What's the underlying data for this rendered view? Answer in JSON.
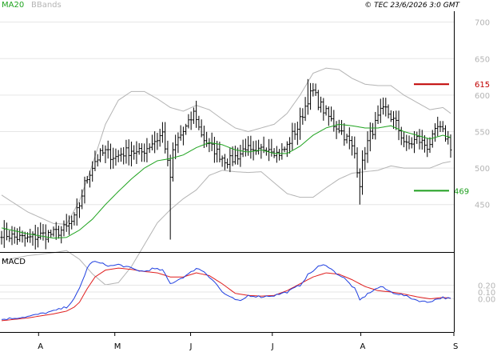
{
  "header": {
    "ma_label": "MA20",
    "bbands_label": "BBands",
    "credit": "© TEC 23/6/2026 3:0 GMT"
  },
  "macd_label": "MACD",
  "colors": {
    "price_bars": "#000000",
    "ma20": "#1fa31f",
    "bbands": "#b4b4b4",
    "grid": "#e6e6e6",
    "resistance": "#c00000",
    "support": "#1f9f1f",
    "macd": "#1f3fe0",
    "signal": "#e01f1f",
    "axis_text": "#b4b4b4",
    "legend_ma": "#1fa31f",
    "legend_bb": "#b4b4b4"
  },
  "levels": {
    "resistance": {
      "value": 615,
      "label": "615"
    },
    "support": {
      "value": 469,
      "label": "469"
    }
  },
  "chart_data": [
    {
      "type": "ohlc",
      "ylim": [
        385,
        715
      ],
      "yticks": [
        {
          "value": 700,
          "label": "700"
        },
        {
          "value": 650,
          "label": "650"
        },
        {
          "value": 600,
          "label": "600"
        },
        {
          "value": 550,
          "label": "550"
        },
        {
          "value": 500,
          "label": "500"
        },
        {
          "value": 450,
          "label": "450"
        }
      ],
      "xticks": [
        "A",
        "M",
        "J",
        "J",
        "A",
        "S"
      ],
      "grid": true,
      "series": [
        {
          "key": "ma20",
          "name": "MA20"
        },
        {
          "key": "bbands",
          "name": "BBands"
        }
      ],
      "price_anchors": [
        [
          0,
          412
        ],
        [
          5,
          405
        ],
        [
          10,
          403
        ],
        [
          15,
          408
        ],
        [
          20,
          410
        ],
        [
          25,
          418
        ],
        [
          28,
          430
        ],
        [
          30,
          450
        ],
        [
          32,
          478
        ],
        [
          34,
          495
        ],
        [
          36,
          510
        ],
        [
          38,
          518
        ],
        [
          40,
          522
        ],
        [
          42,
          518
        ],
        [
          44,
          515
        ],
        [
          46,
          520
        ],
        [
          48,
          522
        ],
        [
          50,
          525
        ],
        [
          52,
          520
        ],
        [
          54,
          522
        ],
        [
          56,
          528
        ],
        [
          58,
          535
        ],
        [
          60,
          540
        ],
        [
          62,
          548
        ],
        [
          63,
          530
        ],
        [
          64,
          505
        ],
        [
          65,
          488
        ],
        [
          66,
          520
        ],
        [
          68,
          540
        ],
        [
          70,
          550
        ],
        [
          72,
          560
        ],
        [
          74,
          575
        ],
        [
          75,
          570
        ],
        [
          76,
          555
        ],
        [
          78,
          540
        ],
        [
          80,
          530
        ],
        [
          82,
          525
        ],
        [
          84,
          518
        ],
        [
          86,
          512
        ],
        [
          88,
          510
        ],
        [
          90,
          515
        ],
        [
          92,
          520
        ],
        [
          94,
          530
        ],
        [
          96,
          520
        ],
        [
          98,
          518
        ],
        [
          100,
          525
        ],
        [
          102,
          530
        ],
        [
          104,
          528
        ],
        [
          106,
          520
        ],
        [
          108,
          522
        ],
        [
          110,
          530
        ],
        [
          112,
          545
        ],
        [
          114,
          555
        ],
        [
          116,
          575
        ],
        [
          118,
          595
        ],
        [
          120,
          605
        ],
        [
          122,
          590
        ],
        [
          124,
          580
        ],
        [
          126,
          570
        ],
        [
          128,
          560
        ],
        [
          130,
          555
        ],
        [
          132,
          545
        ],
        [
          134,
          535
        ],
        [
          136,
          520
        ],
        [
          137,
          500
        ],
        [
          138,
          480
        ],
        [
          139,
          505
        ],
        [
          140,
          525
        ],
        [
          142,
          545
        ],
        [
          144,
          560
        ],
        [
          146,
          575
        ],
        [
          148,
          580
        ],
        [
          150,
          570
        ],
        [
          152,
          560
        ],
        [
          154,
          545
        ],
        [
          156,
          530
        ],
        [
          158,
          535
        ],
        [
          160,
          540
        ],
        [
          162,
          535
        ],
        [
          164,
          530
        ],
        [
          166,
          540
        ],
        [
          168,
          555
        ],
        [
          170,
          548
        ],
        [
          172,
          540
        ],
        [
          173,
          530
        ]
      ],
      "ma20_anchors": [
        [
          0,
          418
        ],
        [
          10,
          410
        ],
        [
          20,
          404
        ],
        [
          25,
          405
        ],
        [
          30,
          415
        ],
        [
          35,
          430
        ],
        [
          40,
          450
        ],
        [
          45,
          468
        ],
        [
          50,
          485
        ],
        [
          55,
          500
        ],
        [
          60,
          510
        ],
        [
          65,
          513
        ],
        [
          70,
          518
        ],
        [
          75,
          528
        ],
        [
          80,
          535
        ],
        [
          85,
          532
        ],
        [
          90,
          525
        ],
        [
          95,
          522
        ],
        [
          100,
          525
        ],
        [
          105,
          520
        ],
        [
          110,
          520
        ],
        [
          115,
          530
        ],
        [
          120,
          545
        ],
        [
          125,
          555
        ],
        [
          130,
          560
        ],
        [
          135,
          558
        ],
        [
          140,
          555
        ],
        [
          145,
          555
        ],
        [
          150,
          558
        ],
        [
          155,
          550
        ],
        [
          160,
          545
        ],
        [
          165,
          540
        ],
        [
          170,
          545
        ],
        [
          173,
          542
        ]
      ],
      "bb_width_anchors": [
        [
          0,
          45
        ],
        [
          10,
          30
        ],
        [
          20,
          20
        ],
        [
          25,
          18
        ],
        [
          30,
          40
        ],
        [
          35,
          75
        ],
        [
          40,
          110
        ],
        [
          45,
          125
        ],
        [
          50,
          120
        ],
        [
          55,
          105
        ],
        [
          60,
          85
        ],
        [
          65,
          70
        ],
        [
          70,
          60
        ],
        [
          75,
          58
        ],
        [
          80,
          45
        ],
        [
          85,
          35
        ],
        [
          90,
          30
        ],
        [
          95,
          28
        ],
        [
          100,
          30
        ],
        [
          105,
          40
        ],
        [
          110,
          55
        ],
        [
          115,
          70
        ],
        [
          120,
          85
        ],
        [
          125,
          82
        ],
        [
          130,
          75
        ],
        [
          135,
          65
        ],
        [
          140,
          60
        ],
        [
          145,
          58
        ],
        [
          150,
          55
        ],
        [
          155,
          50
        ],
        [
          160,
          45
        ],
        [
          165,
          40
        ],
        [
          170,
          38
        ],
        [
          173,
          33
        ]
      ]
    },
    {
      "type": "line",
      "title": "MACD",
      "ylim": [
        -45,
        65
      ],
      "yticks": [
        {
          "value": 20,
          "label": "0.20"
        },
        {
          "value": 10,
          "label": "0.10"
        },
        {
          "value": 0,
          "label": "0.00"
        }
      ],
      "macd_anchors": [
        [
          0,
          -30
        ],
        [
          5,
          -28
        ],
        [
          10,
          -26
        ],
        [
          15,
          -22
        ],
        [
          20,
          -18
        ],
        [
          25,
          -12
        ],
        [
          28,
          0
        ],
        [
          30,
          15
        ],
        [
          33,
          45
        ],
        [
          35,
          55
        ],
        [
          38,
          52
        ],
        [
          42,
          48
        ],
        [
          45,
          50
        ],
        [
          48,
          47
        ],
        [
          52,
          42
        ],
        [
          55,
          40
        ],
        [
          58,
          44
        ],
        [
          62,
          42
        ],
        [
          65,
          22
        ],
        [
          68,
          28
        ],
        [
          72,
          36
        ],
        [
          75,
          45
        ],
        [
          78,
          40
        ],
        [
          82,
          25
        ],
        [
          85,
          10
        ],
        [
          88,
          2
        ],
        [
          92,
          -4
        ],
        [
          95,
          5
        ],
        [
          100,
          3
        ],
        [
          105,
          5
        ],
        [
          110,
          10
        ],
        [
          115,
          20
        ],
        [
          118,
          35
        ],
        [
          122,
          47
        ],
        [
          125,
          50
        ],
        [
          128,
          40
        ],
        [
          132,
          30
        ],
        [
          136,
          15
        ],
        [
          138,
          -2
        ],
        [
          142,
          10
        ],
        [
          146,
          18
        ],
        [
          150,
          10
        ],
        [
          155,
          5
        ],
        [
          160,
          -2
        ],
        [
          164,
          -5
        ],
        [
          168,
          0
        ],
        [
          170,
          2
        ],
        [
          173,
          0
        ]
      ],
      "signal_anchors": [
        [
          0,
          -32
        ],
        [
          5,
          -30
        ],
        [
          10,
          -28
        ],
        [
          15,
          -25
        ],
        [
          20,
          -22
        ],
        [
          25,
          -18
        ],
        [
          28,
          -12
        ],
        [
          30,
          -5
        ],
        [
          33,
          15
        ],
        [
          36,
          32
        ],
        [
          40,
          42
        ],
        [
          45,
          45
        ],
        [
          50,
          43
        ],
        [
          55,
          40
        ],
        [
          60,
          38
        ],
        [
          65,
          32
        ],
        [
          70,
          32
        ],
        [
          75,
          38
        ],
        [
          80,
          34
        ],
        [
          85,
          22
        ],
        [
          90,
          8
        ],
        [
          95,
          5
        ],
        [
          100,
          4
        ],
        [
          105,
          5
        ],
        [
          110,
          12
        ],
        [
          115,
          22
        ],
        [
          120,
          32
        ],
        [
          125,
          38
        ],
        [
          130,
          36
        ],
        [
          135,
          28
        ],
        [
          140,
          18
        ],
        [
          145,
          12
        ],
        [
          150,
          10
        ],
        [
          155,
          7
        ],
        [
          160,
          3
        ],
        [
          165,
          0
        ],
        [
          170,
          2
        ],
        [
          173,
          1
        ]
      ]
    }
  ]
}
